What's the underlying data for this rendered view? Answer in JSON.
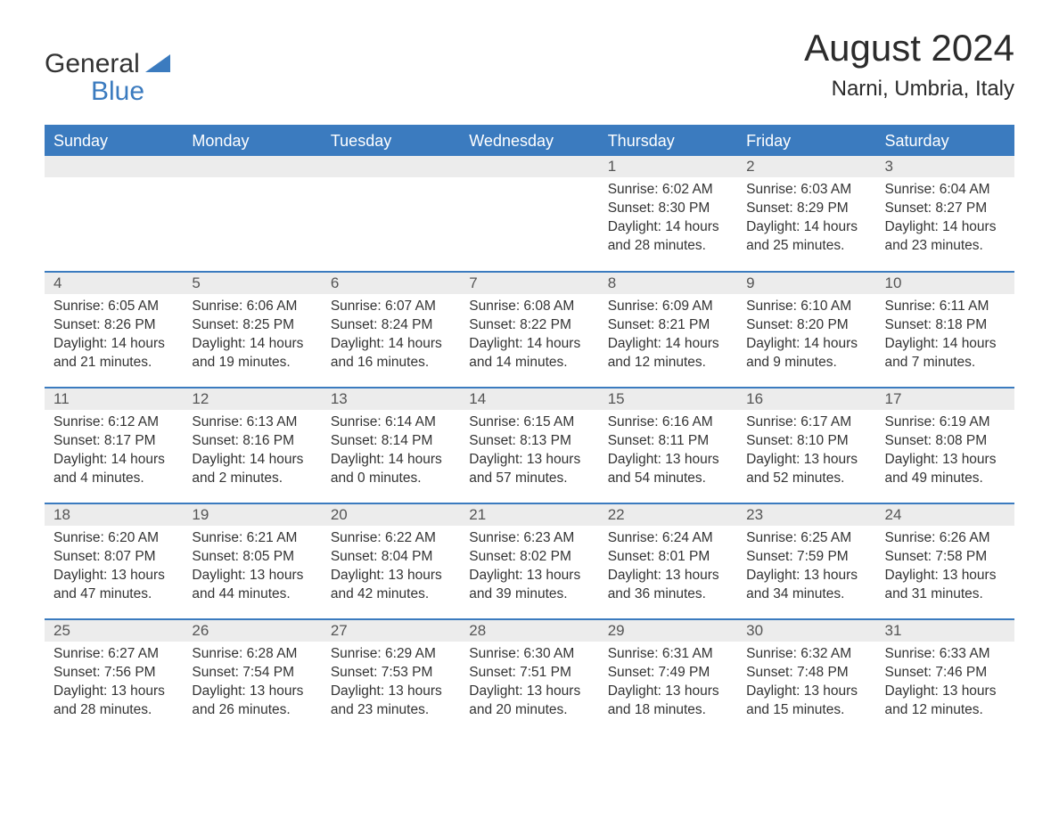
{
  "logo": {
    "text_general": "General",
    "text_blue": "Blue",
    "triangle_color": "#3b7bbf"
  },
  "header": {
    "month_title": "August 2024",
    "location": "Narni, Umbria, Italy"
  },
  "colors": {
    "header_bg": "#3b7bbf",
    "header_text": "#ffffff",
    "daynum_bg": "#ececec",
    "daynum_text": "#555555",
    "body_text": "#333333",
    "row_border": "#3b7bbf",
    "page_bg": "#ffffff"
  },
  "weekdays": [
    "Sunday",
    "Monday",
    "Tuesday",
    "Wednesday",
    "Thursday",
    "Friday",
    "Saturday"
  ],
  "weeks": [
    [
      null,
      null,
      null,
      null,
      {
        "n": "1",
        "sunrise": "6:02 AM",
        "sunset": "8:30 PM",
        "dlh": "14",
        "dlm": "28"
      },
      {
        "n": "2",
        "sunrise": "6:03 AM",
        "sunset": "8:29 PM",
        "dlh": "14",
        "dlm": "25"
      },
      {
        "n": "3",
        "sunrise": "6:04 AM",
        "sunset": "8:27 PM",
        "dlh": "14",
        "dlm": "23"
      }
    ],
    [
      {
        "n": "4",
        "sunrise": "6:05 AM",
        "sunset": "8:26 PM",
        "dlh": "14",
        "dlm": "21"
      },
      {
        "n": "5",
        "sunrise": "6:06 AM",
        "sunset": "8:25 PM",
        "dlh": "14",
        "dlm": "19"
      },
      {
        "n": "6",
        "sunrise": "6:07 AM",
        "sunset": "8:24 PM",
        "dlh": "14",
        "dlm": "16"
      },
      {
        "n": "7",
        "sunrise": "6:08 AM",
        "sunset": "8:22 PM",
        "dlh": "14",
        "dlm": "14"
      },
      {
        "n": "8",
        "sunrise": "6:09 AM",
        "sunset": "8:21 PM",
        "dlh": "14",
        "dlm": "12"
      },
      {
        "n": "9",
        "sunrise": "6:10 AM",
        "sunset": "8:20 PM",
        "dlh": "14",
        "dlm": "9"
      },
      {
        "n": "10",
        "sunrise": "6:11 AM",
        "sunset": "8:18 PM",
        "dlh": "14",
        "dlm": "7"
      }
    ],
    [
      {
        "n": "11",
        "sunrise": "6:12 AM",
        "sunset": "8:17 PM",
        "dlh": "14",
        "dlm": "4"
      },
      {
        "n": "12",
        "sunrise": "6:13 AM",
        "sunset": "8:16 PM",
        "dlh": "14",
        "dlm": "2"
      },
      {
        "n": "13",
        "sunrise": "6:14 AM",
        "sunset": "8:14 PM",
        "dlh": "14",
        "dlm": "0"
      },
      {
        "n": "14",
        "sunrise": "6:15 AM",
        "sunset": "8:13 PM",
        "dlh": "13",
        "dlm": "57"
      },
      {
        "n": "15",
        "sunrise": "6:16 AM",
        "sunset": "8:11 PM",
        "dlh": "13",
        "dlm": "54"
      },
      {
        "n": "16",
        "sunrise": "6:17 AM",
        "sunset": "8:10 PM",
        "dlh": "13",
        "dlm": "52"
      },
      {
        "n": "17",
        "sunrise": "6:19 AM",
        "sunset": "8:08 PM",
        "dlh": "13",
        "dlm": "49"
      }
    ],
    [
      {
        "n": "18",
        "sunrise": "6:20 AM",
        "sunset": "8:07 PM",
        "dlh": "13",
        "dlm": "47"
      },
      {
        "n": "19",
        "sunrise": "6:21 AM",
        "sunset": "8:05 PM",
        "dlh": "13",
        "dlm": "44"
      },
      {
        "n": "20",
        "sunrise": "6:22 AM",
        "sunset": "8:04 PM",
        "dlh": "13",
        "dlm": "42"
      },
      {
        "n": "21",
        "sunrise": "6:23 AM",
        "sunset": "8:02 PM",
        "dlh": "13",
        "dlm": "39"
      },
      {
        "n": "22",
        "sunrise": "6:24 AM",
        "sunset": "8:01 PM",
        "dlh": "13",
        "dlm": "36"
      },
      {
        "n": "23",
        "sunrise": "6:25 AM",
        "sunset": "7:59 PM",
        "dlh": "13",
        "dlm": "34"
      },
      {
        "n": "24",
        "sunrise": "6:26 AM",
        "sunset": "7:58 PM",
        "dlh": "13",
        "dlm": "31"
      }
    ],
    [
      {
        "n": "25",
        "sunrise": "6:27 AM",
        "sunset": "7:56 PM",
        "dlh": "13",
        "dlm": "28"
      },
      {
        "n": "26",
        "sunrise": "6:28 AM",
        "sunset": "7:54 PM",
        "dlh": "13",
        "dlm": "26"
      },
      {
        "n": "27",
        "sunrise": "6:29 AM",
        "sunset": "7:53 PM",
        "dlh": "13",
        "dlm": "23"
      },
      {
        "n": "28",
        "sunrise": "6:30 AM",
        "sunset": "7:51 PM",
        "dlh": "13",
        "dlm": "20"
      },
      {
        "n": "29",
        "sunrise": "6:31 AM",
        "sunset": "7:49 PM",
        "dlh": "13",
        "dlm": "18"
      },
      {
        "n": "30",
        "sunrise": "6:32 AM",
        "sunset": "7:48 PM",
        "dlh": "13",
        "dlm": "15"
      },
      {
        "n": "31",
        "sunrise": "6:33 AM",
        "sunset": "7:46 PM",
        "dlh": "13",
        "dlm": "12"
      }
    ]
  ],
  "labels": {
    "sunrise_prefix": "Sunrise: ",
    "sunset_prefix": "Sunset: ",
    "daylight_prefix": "Daylight: ",
    "hours_word": " hours",
    "and_word": "and ",
    "minutes_suffix": " minutes."
  }
}
